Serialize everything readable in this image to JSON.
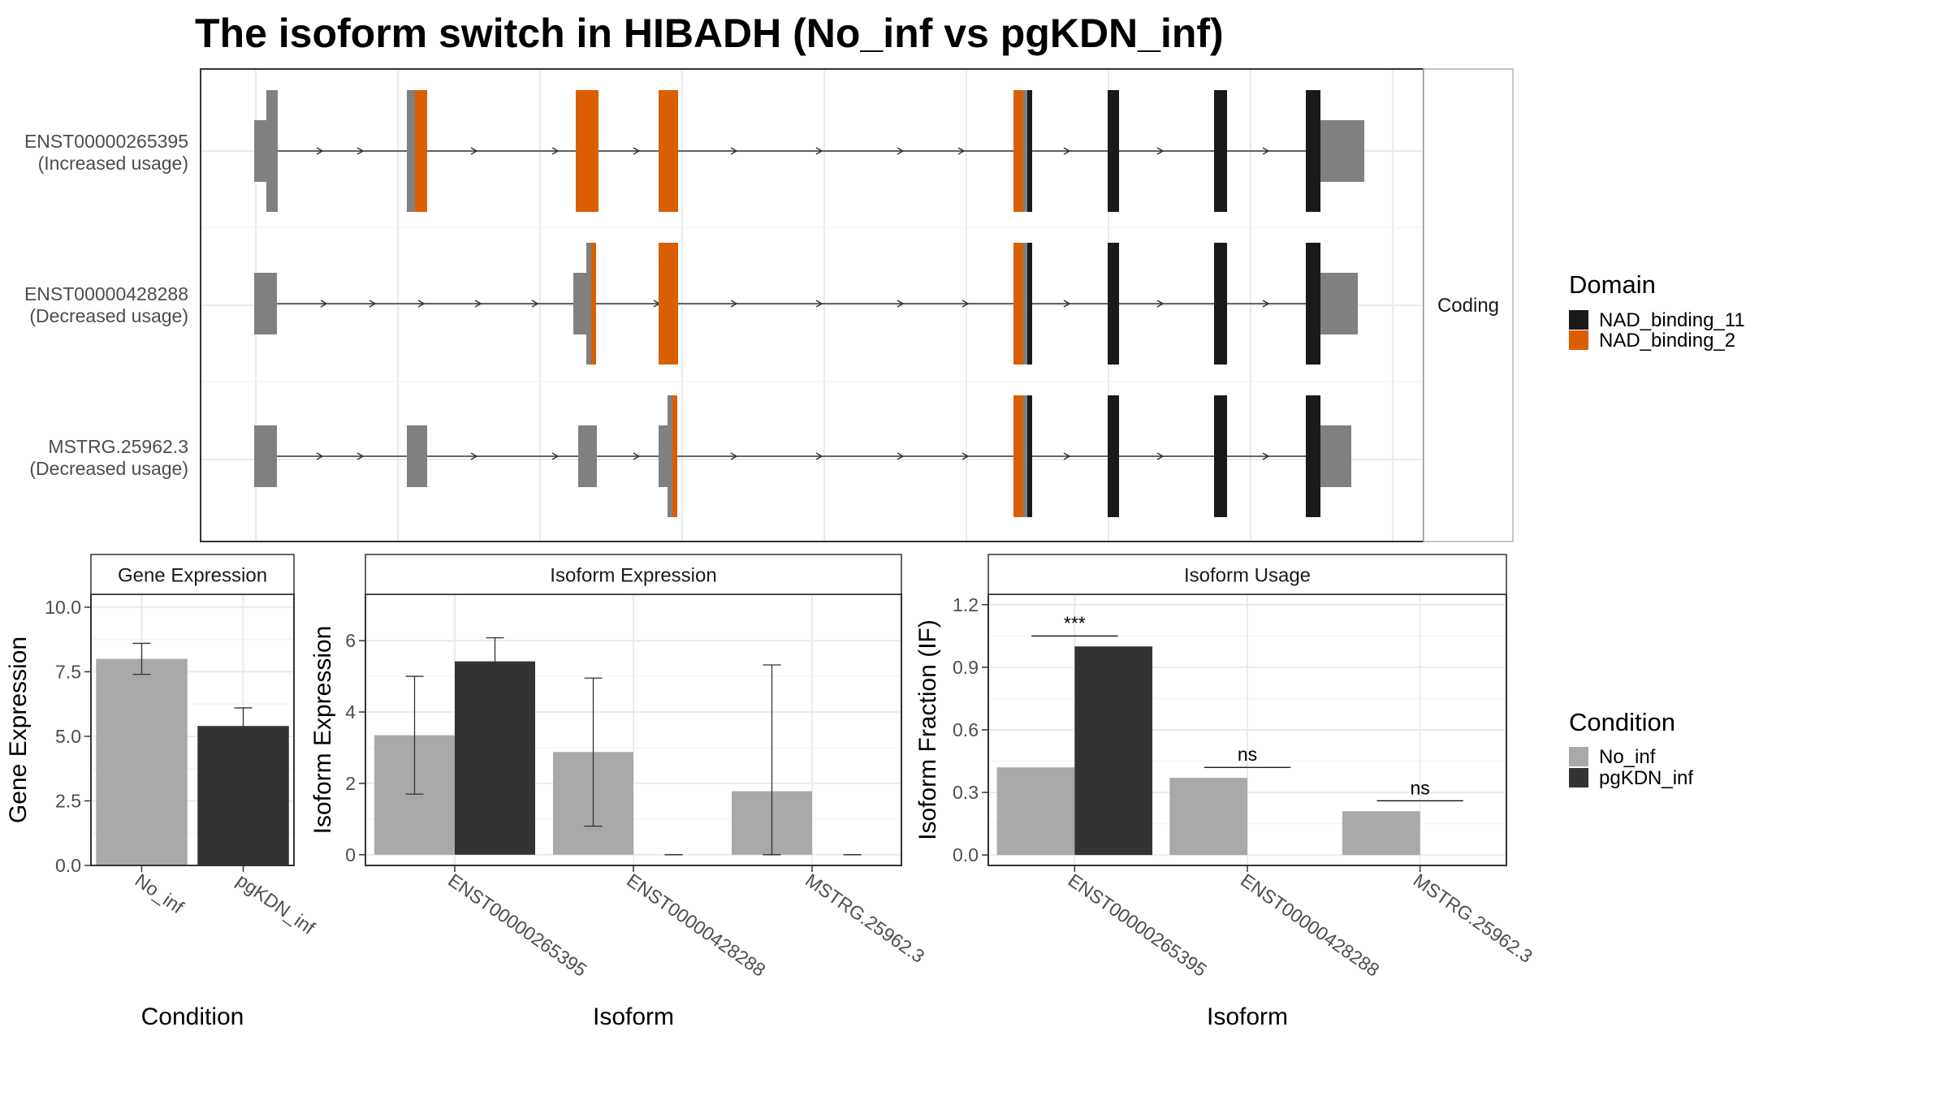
{
  "title": "The isoform switch in HIBADH (No_inf vs pgKDN_inf)",
  "colors": {
    "exon": "#808080",
    "NAD_binding_11": "#1a1a1a",
    "NAD_binding_2": "#d95f02",
    "No_inf": "#a9a9a9",
    "pgKDN_inf": "#333333"
  },
  "structure": {
    "strip_label": "Coding",
    "isoforms": [
      {
        "id": "ENST00000265395",
        "usage": "(Increased usage)"
      },
      {
        "id": "ENST00000428288",
        "usage": "(Decreased usage)"
      },
      {
        "id": "MSTRG.25962.3",
        "usage": "(Decreased usage)"
      }
    ]
  },
  "legend_domain": {
    "title": "Domain",
    "items": [
      {
        "label": "NAD_binding_11",
        "color": "#1a1a1a"
      },
      {
        "label": "NAD_binding_2",
        "color": "#d95f02"
      }
    ]
  },
  "legend_condition": {
    "title": "Condition",
    "items": [
      {
        "label": "No_inf",
        "color": "#a9a9a9"
      },
      {
        "label": "pgKDN_inf",
        "color": "#333333"
      }
    ]
  },
  "chart_data": [
    {
      "type": "bar",
      "strip": "Gene Expression",
      "xlabel": "Condition",
      "ylabel": "Gene Expression",
      "categories": [
        "No_inf",
        "pgKDN_inf"
      ],
      "values": [
        8.0,
        5.4
      ],
      "error_low": [
        7.4,
        4.8
      ],
      "error_high": [
        8.6,
        6.1
      ],
      "ylim": [
        0,
        10.5
      ],
      "yticks": [
        "0.0",
        "2.5",
        "5.0",
        "7.5",
        "10.0"
      ]
    },
    {
      "type": "bar",
      "strip": "Isoform Expression",
      "xlabel": "Isoform",
      "ylabel": "Isoform Expression",
      "categories": [
        "ENST00000265395",
        "ENST00000428288",
        "MSTRG.25962.3"
      ],
      "series": [
        {
          "name": "No_inf",
          "values": [
            3.35,
            2.88,
            1.78
          ],
          "error_low": [
            1.7,
            0.8,
            0.0
          ],
          "error_high": [
            5.0,
            4.95,
            5.32
          ]
        },
        {
          "name": "pgKDN_inf",
          "values": [
            5.42,
            0.0,
            0.0
          ],
          "error_low": [
            4.78,
            0.0,
            0.0
          ],
          "error_high": [
            6.08,
            0.0,
            0.0
          ]
        }
      ],
      "ylim": [
        -0.3,
        7.3
      ],
      "yticks": [
        "0",
        "2",
        "4",
        "6"
      ]
    },
    {
      "type": "bar",
      "strip": "Isoform Usage",
      "xlabel": "Isoform",
      "ylabel": "Isoform Fraction (IF)",
      "categories": [
        "ENST00000265395",
        "ENST00000428288",
        "MSTRG.25962.3"
      ],
      "series": [
        {
          "name": "No_inf",
          "values": [
            0.42,
            0.37,
            0.21
          ]
        },
        {
          "name": "pgKDN_inf",
          "values": [
            1.0,
            0.0,
            0.0
          ]
        }
      ],
      "significance": [
        "***",
        "ns",
        "ns"
      ],
      "ylim": [
        -0.05,
        1.25
      ],
      "yticks": [
        "0.0",
        "0.3",
        "0.6",
        "0.9",
        "1.2"
      ]
    }
  ]
}
